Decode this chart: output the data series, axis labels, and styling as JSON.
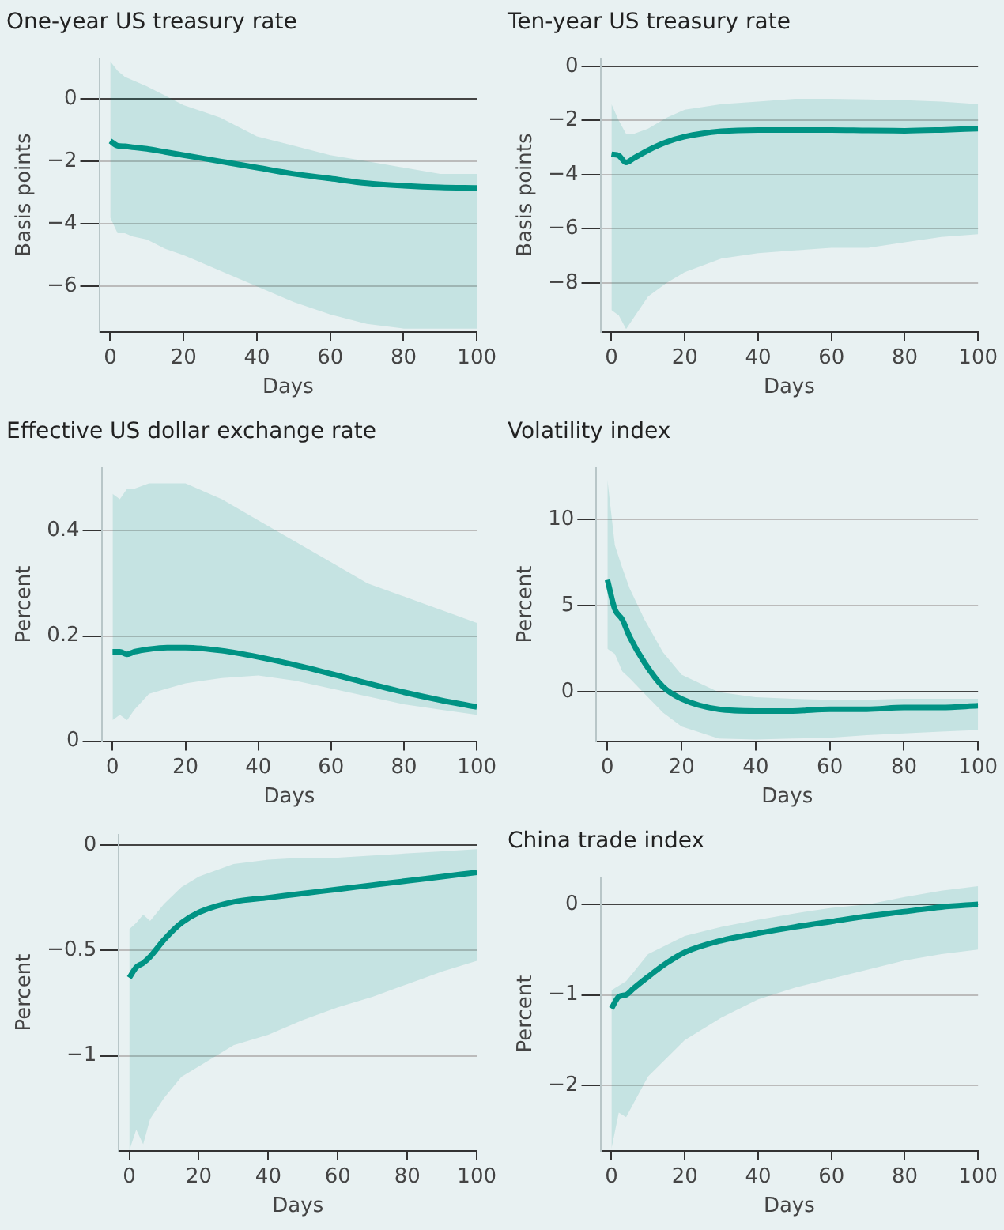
{
  "chart_data": [
    {
      "type": "line",
      "title": "One-year US treasury rate",
      "xlabel": "Days",
      "ylabel": "Basis points",
      "grid": "y",
      "x": [
        0,
        2,
        4,
        6,
        10,
        15,
        20,
        30,
        40,
        50,
        60,
        70,
        80,
        90,
        100
      ],
      "xlim": [
        -3,
        100
      ],
      "xticks": [
        0,
        20,
        40,
        60,
        80,
        100
      ],
      "ylim": [
        -7.45,
        1.3
      ],
      "yticks": [
        {
          "value": -6,
          "label": "−6"
        },
        {
          "value": -4,
          "label": "−4"
        },
        {
          "value": -2,
          "label": "−2"
        },
        0
      ],
      "series": [
        {
          "color": "#009384",
          "values": [
            -1.35,
            -1.5,
            -1.52,
            -1.55,
            -1.6,
            -1.7,
            -1.8,
            -2.0,
            -2.2,
            -2.4,
            -2.55,
            -2.7,
            -2.78,
            -2.83,
            -2.85
          ],
          "upper": [
            1.2,
            0.9,
            0.7,
            0.6,
            0.4,
            0.1,
            -0.2,
            -0.6,
            -1.2,
            -1.5,
            -1.8,
            -2.0,
            -2.2,
            -2.4,
            -2.4
          ],
          "lower": [
            -3.8,
            -4.3,
            -4.3,
            -4.4,
            -4.5,
            -4.8,
            -5.0,
            -5.5,
            -6.0,
            -6.5,
            -6.9,
            -7.2,
            -7.35,
            -7.35,
            -7.35
          ]
        }
      ]
    },
    {
      "type": "line",
      "title": "Ten-year US treasury rate",
      "xlabel": "Days",
      "ylabel": "Basis points",
      "grid": "y",
      "x": [
        0,
        2,
        4,
        6,
        10,
        15,
        20,
        30,
        40,
        50,
        60,
        70,
        80,
        90,
        100
      ],
      "xlim": [
        -3,
        100
      ],
      "xticks": [
        0,
        20,
        40,
        60,
        80,
        100
      ],
      "ylim": [
        -9.8,
        0.3
      ],
      "yticks": [
        {
          "value": -8,
          "label": "−8"
        },
        {
          "value": -6,
          "label": "−6"
        },
        {
          "value": -4,
          "label": "−4"
        },
        {
          "value": -2,
          "label": "−2"
        },
        0
      ],
      "series": [
        {
          "color": "#009384",
          "values": [
            -3.25,
            -3.3,
            -3.55,
            -3.4,
            -3.1,
            -2.8,
            -2.6,
            -2.4,
            -2.35,
            -2.35,
            -2.35,
            -2.37,
            -2.38,
            -2.35,
            -2.3
          ],
          "upper": [
            -1.4,
            -2.0,
            -2.5,
            -2.5,
            -2.3,
            -1.9,
            -1.6,
            -1.4,
            -1.3,
            -1.2,
            -1.2,
            -1.22,
            -1.25,
            -1.3,
            -1.4
          ],
          "lower": [
            -9.0,
            -9.2,
            -9.7,
            -9.3,
            -8.5,
            -8.0,
            -7.6,
            -7.1,
            -6.9,
            -6.8,
            -6.7,
            -6.7,
            -6.5,
            -6.3,
            -6.2
          ]
        }
      ]
    },
    {
      "type": "line",
      "title": "Effective US dollar exchange rate",
      "xlabel": "Days",
      "ylabel": "Percent",
      "grid": "y",
      "x": [
        0,
        2,
        4,
        6,
        10,
        15,
        20,
        30,
        40,
        50,
        60,
        70,
        80,
        90,
        100
      ],
      "xlim": [
        -3,
        100
      ],
      "xticks": [
        0,
        20,
        40,
        60,
        80,
        100
      ],
      "ylim": [
        0,
        0.52
      ],
      "yticks": [
        0,
        0.2,
        0.4
      ],
      "series": [
        {
          "color": "#009384",
          "values": [
            0.17,
            0.17,
            0.165,
            0.17,
            0.175,
            0.178,
            0.178,
            0.172,
            0.16,
            0.145,
            0.128,
            0.11,
            0.093,
            0.078,
            0.065
          ],
          "upper": [
            0.47,
            0.46,
            0.48,
            0.48,
            0.49,
            0.49,
            0.49,
            0.46,
            0.42,
            0.38,
            0.34,
            0.3,
            0.275,
            0.25,
            0.225
          ],
          "lower": [
            0.04,
            0.05,
            0.04,
            0.06,
            0.09,
            0.1,
            0.11,
            0.12,
            0.125,
            0.115,
            0.1,
            0.085,
            0.07,
            0.06,
            0.05
          ]
        }
      ]
    },
    {
      "type": "line",
      "title": "Volatility index",
      "xlabel": "Days",
      "ylabel": "Percent",
      "grid": "y",
      "x": [
        0,
        2,
        4,
        6,
        10,
        15,
        20,
        30,
        40,
        50,
        60,
        70,
        80,
        90,
        100
      ],
      "xlim": [
        -3,
        100
      ],
      "xticks": [
        0,
        20,
        40,
        60,
        80,
        100
      ],
      "ylim": [
        -2.85,
        13
      ],
      "yticks": [
        0,
        5,
        10
      ],
      "series": [
        {
          "color": "#009384",
          "values": [
            6.5,
            4.8,
            4.2,
            3.2,
            1.7,
            0.3,
            -0.4,
            -1.0,
            -1.1,
            -1.1,
            -1.0,
            -1.0,
            -0.9,
            -0.9,
            -0.8
          ],
          "upper": [
            12.3,
            8.5,
            7.2,
            6.0,
            4.2,
            2.3,
            1.0,
            0,
            -0.3,
            -0.4,
            -0.45,
            -0.45,
            -0.4,
            -0.4,
            -0.4
          ],
          "lower": [
            2.5,
            2.2,
            1.2,
            0.8,
            -0.1,
            -1.2,
            -2.0,
            -2.7,
            -2.75,
            -2.7,
            -2.65,
            -2.5,
            -2.4,
            -2.3,
            -2.2
          ]
        }
      ]
    },
    {
      "type": "line",
      "xlabel": "Days",
      "ylabel": "Percent",
      "grid": "y",
      "x": [
        0,
        2,
        4,
        6,
        10,
        15,
        20,
        30,
        40,
        50,
        60,
        70,
        80,
        90,
        100
      ],
      "xlim": [
        -3,
        100
      ],
      "xticks": [
        0,
        20,
        40,
        60,
        80,
        100
      ],
      "ylim": [
        -1.45,
        0.05
      ],
      "yticks": [
        {
          "value": -1,
          "label": "−1"
        },
        {
          "value": -0.5,
          "label": "−0.5"
        },
        0
      ],
      "series": [
        {
          "color": "#009384",
          "values": [
            -0.63,
            -0.58,
            -0.56,
            -0.53,
            -0.45,
            -0.37,
            -0.32,
            -0.27,
            -0.25,
            -0.23,
            -0.21,
            -0.19,
            -0.17,
            -0.15,
            -0.13
          ],
          "upper": [
            -0.4,
            -0.37,
            -0.33,
            -0.36,
            -0.28,
            -0.2,
            -0.15,
            -0.09,
            -0.07,
            -0.06,
            -0.06,
            -0.05,
            -0.04,
            -0.03,
            -0.02
          ],
          "lower": [
            -1.45,
            -1.35,
            -1.42,
            -1.3,
            -1.2,
            -1.1,
            -1.05,
            -0.95,
            -0.9,
            -0.83,
            -0.77,
            -0.72,
            -0.66,
            -0.6,
            -0.55
          ]
        }
      ]
    },
    {
      "type": "line",
      "title": "China trade index",
      "xlabel": "Days",
      "ylabel": "Percent",
      "grid": "y",
      "x": [
        0,
        2,
        4,
        6,
        10,
        15,
        20,
        30,
        40,
        50,
        60,
        70,
        80,
        90,
        100
      ],
      "xlim": [
        -3,
        100
      ],
      "xticks": [
        0,
        20,
        40,
        60,
        80,
        100
      ],
      "ylim": [
        -2.72,
        0.3
      ],
      "yticks": [
        {
          "value": -2,
          "label": "−2"
        },
        {
          "value": -1,
          "label": "−1"
        },
        0
      ],
      "series": [
        {
          "color": "#009384",
          "values": [
            -1.15,
            -1.02,
            -1.0,
            -0.93,
            -0.8,
            -0.65,
            -0.53,
            -0.4,
            -0.32,
            -0.25,
            -0.19,
            -0.13,
            -0.08,
            -0.03,
            0.0
          ],
          "upper": [
            -0.95,
            -0.9,
            -0.85,
            -0.75,
            -0.55,
            -0.45,
            -0.35,
            -0.25,
            -0.17,
            -0.1,
            -0.04,
            0.0,
            0.08,
            0.15,
            0.2
          ],
          "lower": [
            -2.7,
            -2.3,
            -2.35,
            -2.2,
            -1.9,
            -1.7,
            -1.5,
            -1.25,
            -1.05,
            -0.92,
            -0.82,
            -0.72,
            -0.62,
            -0.55,
            -0.5
          ]
        }
      ]
    }
  ]
}
